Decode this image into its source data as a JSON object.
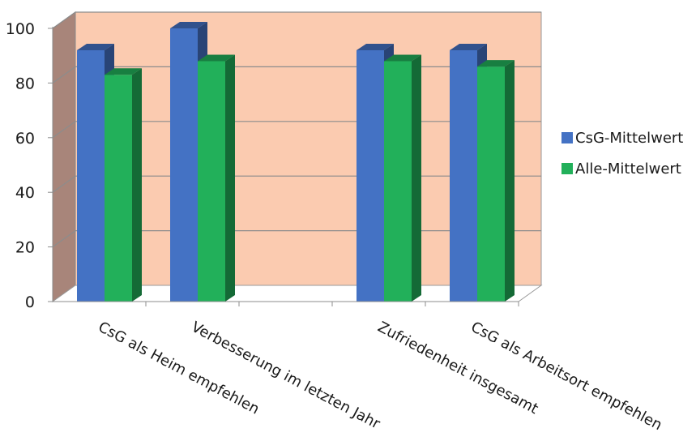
{
  "chart_data": {
    "type": "bar",
    "three_d": true,
    "categories": [
      "CsG als Heim empfehlen",
      "Verbesserung im letzten Jahr",
      "",
      "Zufriedenheit insgesamt",
      "CsG als Arbeitsort empfehlen"
    ],
    "series": [
      {
        "name": "CsG-Mittelwert",
        "values": [
          92,
          100,
          null,
          92,
          92
        ],
        "color": "#4472c4"
      },
      {
        "name": "Alle-Mittelwert",
        "values": [
          83,
          88,
          null,
          88,
          86
        ],
        "color": "#22b05a"
      }
    ],
    "title": "",
    "xlabel": "",
    "ylabel": "",
    "ylim": [
      0,
      100
    ],
    "yticks": [
      0,
      20,
      40,
      60,
      80,
      100
    ],
    "grid": true,
    "legend_position": "right",
    "colors": {
      "back_wall": "#fbcbb0",
      "side_wall": "#a8857a",
      "floor": "#ffffff"
    }
  }
}
